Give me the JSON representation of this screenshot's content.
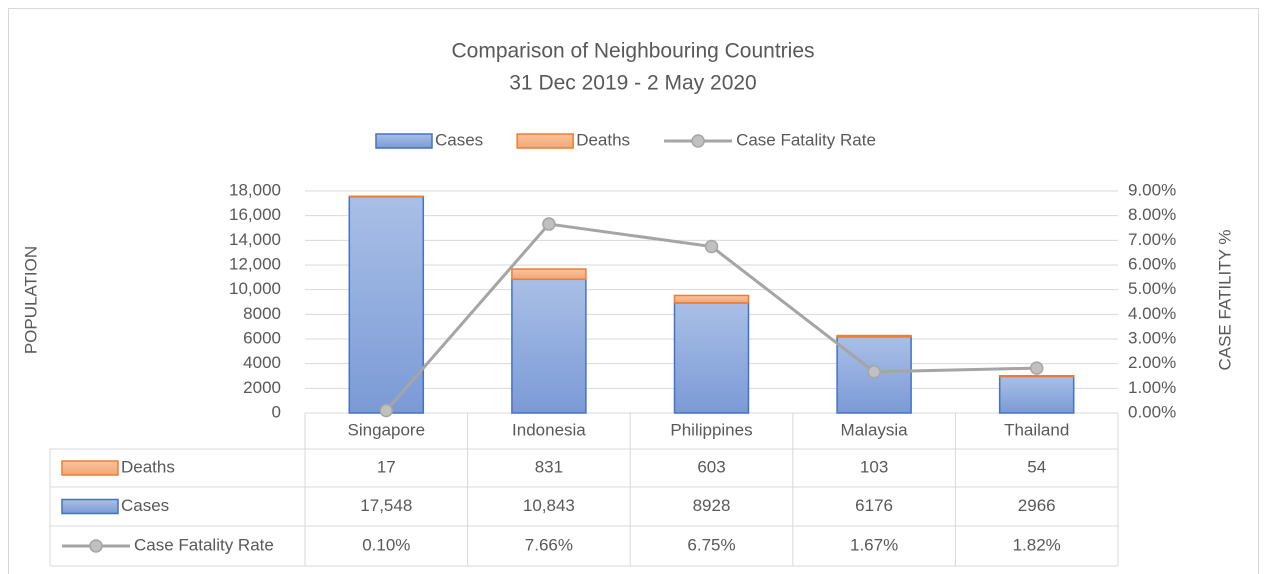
{
  "chart_data": {
    "type": "bar",
    "stacked": true,
    "title": "Comparison of Neighbouring Countries",
    "subtitle": "31 Dec 2019 - 2 May 2020",
    "y_label": "POPULATION",
    "y2_label": "CASE FATILITY %",
    "categories": [
      "Singapore",
      "Indonesia",
      "Philippines",
      "Malaysia",
      "Thailand"
    ],
    "series": [
      {
        "name": "Cases",
        "color": "#4472c4",
        "values": [
          17548,
          10843,
          8928,
          6176,
          2966
        ],
        "value_labels": [
          "17,548",
          "10,843",
          "8928",
          "6176",
          "2966"
        ]
      },
      {
        "name": "Deaths",
        "color": "#ed7d31",
        "values": [
          17,
          831,
          603,
          103,
          54
        ]
      },
      {
        "name": "Case Fatality  Rate",
        "color": "#a5a5a5",
        "type": "line",
        "axis": "y2",
        "values": [
          0.1,
          7.66,
          6.75,
          1.67,
          1.82
        ],
        "value_labels": [
          "0.10%",
          "7.66%",
          "6.75%",
          "1.67%",
          "1.82%"
        ]
      }
    ],
    "ylim": [
      0,
      18000
    ],
    "yticks": [
      0,
      2000,
      4000,
      6000,
      8000,
      {
        "value": 10000,
        "label": "10,000"
      },
      {
        "value": 12000,
        "label": "12,000"
      },
      {
        "value": 14000,
        "label": "14,000"
      },
      {
        "value": 16000,
        "label": "16,000"
      },
      {
        "value": 18000,
        "label": "18,000"
      }
    ],
    "y2lim": [
      0,
      9
    ],
    "y2ticks": [
      {
        "value": 0,
        "label": "0.00%"
      },
      {
        "value": 1,
        "label": "1.00%"
      },
      {
        "value": 2,
        "label": "2.00%"
      },
      {
        "value": 3,
        "label": "3.00%"
      },
      {
        "value": 4,
        "label": "4.00%"
      },
      {
        "value": 5,
        "label": "5.00%"
      },
      {
        "value": 6,
        "label": "6.00%"
      },
      {
        "value": 7,
        "label": "7.00%"
      },
      {
        "value": 8,
        "label": "8.00%"
      },
      {
        "value": 9,
        "label": "9.00%"
      }
    ],
    "grid": true,
    "legend": "top"
  }
}
